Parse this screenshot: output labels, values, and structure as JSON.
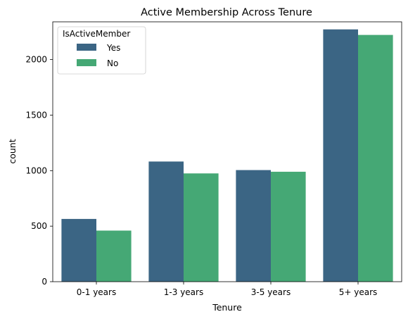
{
  "chart_data": {
    "type": "bar",
    "title": "Active Membership Across Tenure",
    "xlabel": "Tenure",
    "ylabel": "count",
    "categories": [
      "0-1 years",
      "1-3 years",
      "3-5 years",
      "5+ years"
    ],
    "series": [
      {
        "name": "Yes",
        "values": [
          565,
          1082,
          1005,
          2272
        ],
        "color": "#3b6584"
      },
      {
        "name": "No",
        "values": [
          460,
          975,
          990,
          2222
        ],
        "color": "#45a875"
      }
    ],
    "ylim": [
      0,
      2340
    ],
    "yticks": [
      0,
      500,
      1000,
      1500,
      2000
    ],
    "grid": false,
    "legend": {
      "title": "IsActiveMember",
      "placement": "top-left"
    }
  }
}
